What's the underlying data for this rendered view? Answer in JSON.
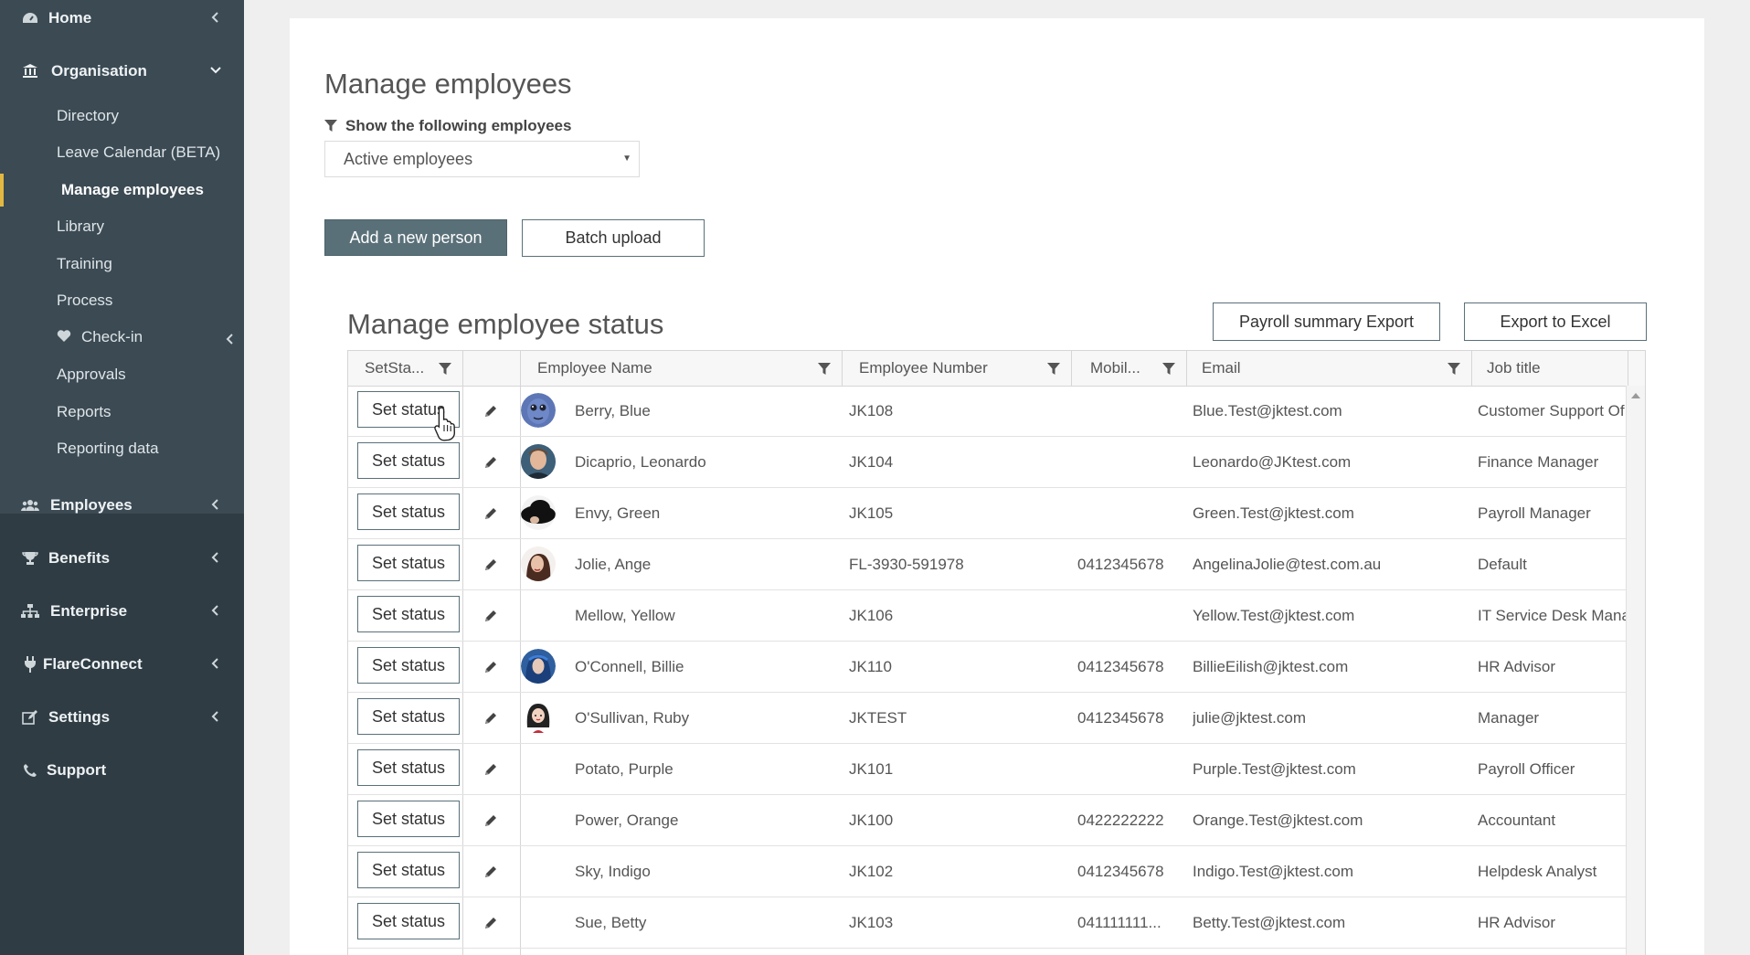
{
  "sidebar": {
    "home": "Home",
    "organisation": "Organisation",
    "org_items": [
      "Directory",
      "Leave Calendar (BETA)",
      "Manage employees",
      "Library",
      "Training",
      "Process",
      "Check-in",
      "Approvals",
      "Reports",
      "Reporting data"
    ],
    "employees": "Employees",
    "benefits": "Benefits",
    "enterprise": "Enterprise",
    "flareconnect": "FlareConnect",
    "settings": "Settings",
    "support": "Support",
    "active_color": "#e2b842"
  },
  "main": {
    "title": "Manage employees",
    "filter_label": "Show the following employees",
    "filter_value": "Active employees",
    "add_button": "Add a new person",
    "batch_button": "Batch upload",
    "section_title": "Manage employee status",
    "payroll_export": "Payroll summary Export",
    "excel_export": "Export to Excel"
  },
  "grid": {
    "columns": [
      "SetSta...",
      "Employee Name",
      "Employee Number",
      "Mobil...",
      "Email",
      "Job title"
    ],
    "set_status_label": "Set status",
    "rows": [
      {
        "name": "Berry, Blue",
        "number": "JK108",
        "mobile": "",
        "email": "Blue.Test@jktest.com",
        "job": "Customer Support Of",
        "avatar": "alien"
      },
      {
        "name": "Dicaprio, Leonardo",
        "number": "JK104",
        "mobile": "",
        "email": "Leonardo@JKtest.com",
        "job": "Finance Manager",
        "avatar": "man"
      },
      {
        "name": "Envy, Green",
        "number": "JK105",
        "mobile": "",
        "email": "Green.Test@jktest.com",
        "job": "Payroll Manager",
        "avatar": "hat"
      },
      {
        "name": "Jolie, Ange",
        "number": "FL-3930-591978",
        "mobile": "0412345678",
        "email": "AngelinaJolie@test.com.au",
        "job": "Default",
        "avatar": "woman"
      },
      {
        "name": "Mellow, Yellow",
        "number": "JK106",
        "mobile": "",
        "email": "Yellow.Test@jktest.com",
        "job": "IT Service Desk Mana",
        "avatar": ""
      },
      {
        "name": "O'Connell, Billie",
        "number": "JK110",
        "mobile": "0412345678",
        "email": "BillieEilish@jktest.com",
        "job": "HR Advisor",
        "avatar": "blue-hair"
      },
      {
        "name": "O'Sullivan, Ruby",
        "number": "JKTEST",
        "mobile": "0412345678",
        "email": "julie@jktest.com",
        "job": "Manager",
        "avatar": "cartoon"
      },
      {
        "name": "Potato, Purple",
        "number": "JK101",
        "mobile": "",
        "email": "Purple.Test@jktest.com",
        "job": "Payroll Officer",
        "avatar": ""
      },
      {
        "name": "Power, Orange",
        "number": "JK100",
        "mobile": "0422222222",
        "email": "Orange.Test@jktest.com",
        "job": "Accountant",
        "avatar": ""
      },
      {
        "name": "Sky, Indigo",
        "number": "JK102",
        "mobile": "0412345678",
        "email": "Indigo.Test@jktest.com",
        "job": "Helpdesk Analyst",
        "avatar": ""
      },
      {
        "name": "Sue, Betty",
        "number": "JK103",
        "mobile": "041111111...",
        "email": "Betty.Test@jktest.com",
        "job": "HR Advisor",
        "avatar": ""
      }
    ]
  }
}
